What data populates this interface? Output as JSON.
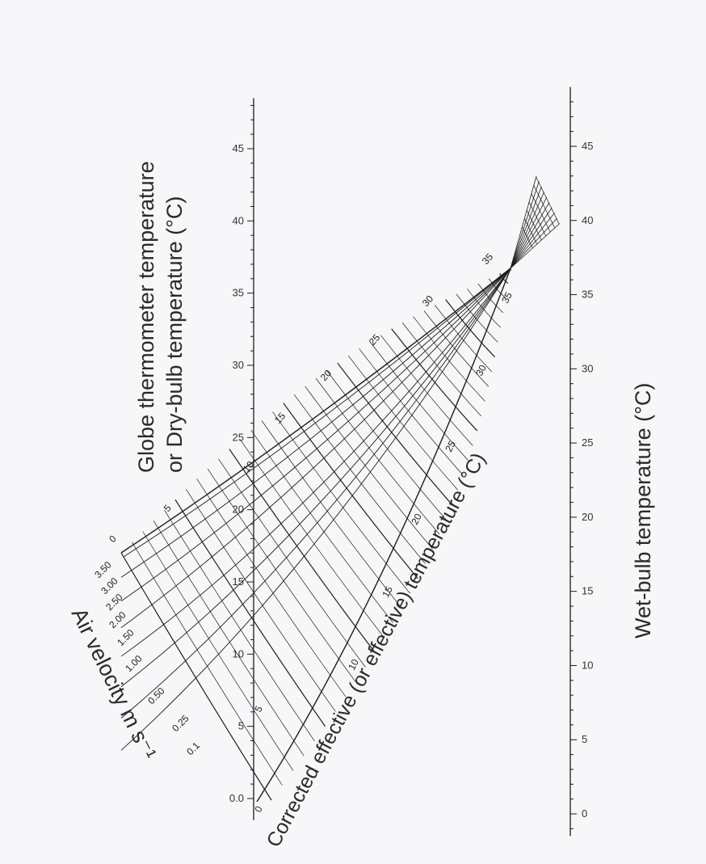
{
  "left_axis": {
    "title_line1": "Globe thermometer temperature",
    "title_line2": "or Dry-bulb temperature (°C)",
    "ticks": [
      "0.0",
      "5",
      "10",
      "15",
      "20",
      "25",
      "30",
      "35",
      "40",
      "45"
    ],
    "min": 0,
    "max": 45
  },
  "right_axis": {
    "title": "Wet-bulb temperature (°C)",
    "ticks": [
      "0",
      "5",
      "10",
      "15",
      "20",
      "25",
      "30",
      "35",
      "40",
      "45"
    ],
    "min": 0,
    "max": 45
  },
  "air_velocity": {
    "title": "Air velocity m s⁻¹",
    "labels": [
      "0",
      "3.50",
      "3.00",
      "2.50",
      "2.00",
      "1.50",
      "1.00",
      "0.50",
      "0.25",
      "0.1"
    ]
  },
  "effective_temperature": {
    "title": "Corrected effective (or effective) temperature (°C)",
    "upper_labels": [
      "5",
      "10",
      "15",
      "20",
      "25",
      "30",
      "35"
    ],
    "lower_labels": [
      "0",
      "5",
      "10",
      "15",
      "20",
      "25",
      "30",
      "35"
    ]
  },
  "colors": {
    "line": "#1c1c1c",
    "background": "#f7f7f9"
  }
}
